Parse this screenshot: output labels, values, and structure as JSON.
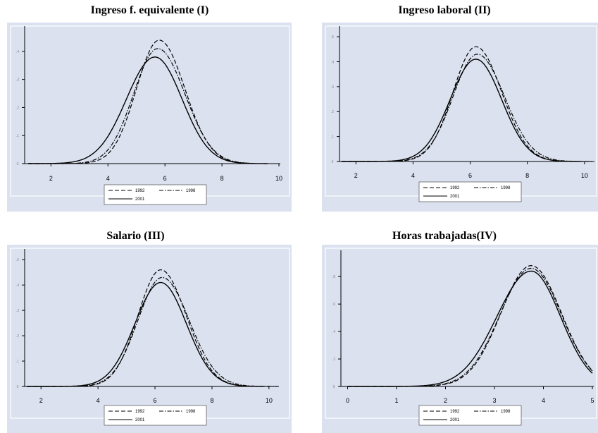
{
  "chart_data": [
    {
      "type": "line",
      "title": "Ingreso f. equivalente (I)",
      "xlim": [
        1.2,
        10
      ],
      "ylim": [
        0,
        0.47
      ],
      "xticks": [
        2,
        4,
        6,
        8,
        10
      ],
      "yticks": [
        "0",
        ".1",
        ".2",
        ".3",
        ".4"
      ],
      "ytick_values": [
        0,
        0.1,
        0.2,
        0.3,
        0.4
      ],
      "legend": "bottom-center",
      "series": [
        {
          "name": "1992",
          "style": "dash",
          "peak_x": 5.8,
          "peak_y": 0.44,
          "sigma_left": 0.8,
          "sigma_right": 0.9,
          "x_range": [
            1.2,
            9.0
          ]
        },
        {
          "name": "1998",
          "style": "dashdot",
          "peak_x": 5.75,
          "peak_y": 0.41,
          "sigma_left": 0.85,
          "sigma_right": 0.95,
          "x_range": [
            1.2,
            9.2
          ]
        },
        {
          "name": "2001",
          "style": "solid",
          "peak_x": 5.65,
          "peak_y": 0.38,
          "sigma_left": 1.0,
          "sigma_right": 0.95,
          "x_range": [
            1.2,
            9.6
          ]
        }
      ]
    },
    {
      "type": "line",
      "title": "Ingreso laboral (II)",
      "xlim": [
        1.5,
        10.3
      ],
      "ylim": [
        0,
        0.52
      ],
      "xticks": [
        2,
        4,
        6,
        8,
        10
      ],
      "yticks": [
        "0",
        ".1",
        ".2",
        ".3",
        ".4",
        ".5"
      ],
      "ytick_values": [
        0,
        0.1,
        0.2,
        0.3,
        0.4,
        0.5
      ],
      "legend": "bottom-center",
      "series": [
        {
          "name": "1992",
          "style": "dash",
          "peak_x": 6.2,
          "peak_y": 0.46,
          "sigma_left": 0.8,
          "sigma_right": 0.9,
          "x_range": [
            1.5,
            10.0
          ]
        },
        {
          "name": "1998",
          "style": "dashdot",
          "peak_x": 6.25,
          "peak_y": 0.43,
          "sigma_left": 0.85,
          "sigma_right": 0.95,
          "x_range": [
            1.5,
            10.3
          ]
        },
        {
          "name": "2001",
          "style": "solid",
          "peak_x": 6.2,
          "peak_y": 0.41,
          "sigma_left": 0.9,
          "sigma_right": 0.9,
          "x_range": [
            1.5,
            9.8
          ]
        }
      ]
    },
    {
      "type": "line",
      "title": "Salario (III)",
      "xlim": [
        1.5,
        10.3
      ],
      "ylim": [
        0,
        0.52
      ],
      "xticks": [
        2,
        4,
        6,
        8,
        10
      ],
      "yticks": [
        "0",
        ".1",
        ".2",
        ".3",
        ".4",
        ".5"
      ],
      "ytick_values": [
        0,
        0.1,
        0.2,
        0.3,
        0.4,
        0.5
      ],
      "legend": "bottom-center",
      "series": [
        {
          "name": "1992",
          "style": "dash",
          "peak_x": 6.2,
          "peak_y": 0.46,
          "sigma_left": 0.8,
          "sigma_right": 0.9,
          "x_range": [
            1.5,
            10.0
          ]
        },
        {
          "name": "1998",
          "style": "dashdot",
          "peak_x": 6.25,
          "peak_y": 0.43,
          "sigma_left": 0.85,
          "sigma_right": 0.95,
          "x_range": [
            1.5,
            10.3
          ]
        },
        {
          "name": "2001",
          "style": "solid",
          "peak_x": 6.2,
          "peak_y": 0.41,
          "sigma_left": 0.9,
          "sigma_right": 0.9,
          "x_range": [
            1.5,
            9.8
          ]
        }
      ]
    },
    {
      "type": "line",
      "title": "Horas trabajadas(IV)",
      "xlim": [
        -0.05,
        5
      ],
      "ylim": [
        0,
        0.95
      ],
      "xticks": [
        0,
        1,
        2,
        3,
        4,
        5
      ],
      "yticks": [
        "0",
        ".2",
        ".4",
        ".6",
        ".8"
      ],
      "ytick_values": [
        0,
        0.2,
        0.4,
        0.6,
        0.8
      ],
      "legend": "bottom-center",
      "series": [
        {
          "name": "1992",
          "style": "dash",
          "peak_x": 3.75,
          "peak_y": 0.88,
          "sigma_left": 0.62,
          "sigma_right": 0.62,
          "x_range": [
            0,
            5
          ]
        },
        {
          "name": "1998",
          "style": "dashdot",
          "peak_x": 3.75,
          "peak_y": 0.86,
          "sigma_left": 0.64,
          "sigma_right": 0.62,
          "x_range": [
            0,
            5
          ]
        },
        {
          "name": "2001",
          "style": "solid",
          "peak_x": 3.75,
          "peak_y": 0.84,
          "sigma_left": 0.7,
          "sigma_right": 0.6,
          "x_range": [
            0,
            5
          ]
        }
      ]
    }
  ]
}
